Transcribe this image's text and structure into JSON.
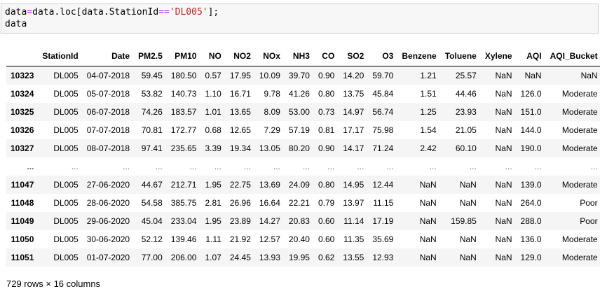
{
  "code": {
    "line1_pre": "data",
    "line1_eq": "=",
    "line1_mid": "data.loc[data.StationId",
    "line1_op": "==",
    "line1_str": "'DL005'",
    "line1_post": "];",
    "line2": "data"
  },
  "table": {
    "columns": [
      "",
      "StationId",
      "Date",
      "PM2.5",
      "PM10",
      "NO",
      "NO2",
      "NOx",
      "NH3",
      "CO",
      "SO2",
      "O3",
      "Benzene",
      "Toluene",
      "Xylene",
      "AQI",
      "AQI_Bucket"
    ],
    "rows": [
      [
        "10323",
        "DL005",
        "04-07-2018",
        "59.45",
        "180.50",
        "0.57",
        "17.95",
        "10.09",
        "39.70",
        "0.90",
        "14.20",
        "59.70",
        "1.21",
        "25.57",
        "NaN",
        "NaN",
        "NaN"
      ],
      [
        "10324",
        "DL005",
        "05-07-2018",
        "53.82",
        "140.73",
        "1.10",
        "16.71",
        "9.78",
        "41.26",
        "0.80",
        "13.75",
        "45.84",
        "1.51",
        "44.46",
        "NaN",
        "126.0",
        "Moderate"
      ],
      [
        "10325",
        "DL005",
        "06-07-2018",
        "74.26",
        "183.57",
        "1.01",
        "13.65",
        "8.09",
        "53.00",
        "0.73",
        "14.97",
        "56.74",
        "1.25",
        "23.93",
        "NaN",
        "151.0",
        "Moderate"
      ],
      [
        "10326",
        "DL005",
        "07-07-2018",
        "70.81",
        "172.77",
        "0.68",
        "12.65",
        "7.29",
        "57.19",
        "0.81",
        "17.17",
        "75.98",
        "1.54",
        "21.05",
        "NaN",
        "144.0",
        "Moderate"
      ],
      [
        "10327",
        "DL005",
        "08-07-2018",
        "97.41",
        "235.65",
        "3.39",
        "19.34",
        "13.05",
        "80.20",
        "0.90",
        "14.17",
        "71.24",
        "2.42",
        "60.10",
        "NaN",
        "190.0",
        "Moderate"
      ],
      [
        "...",
        "...",
        "...",
        "...",
        "...",
        "...",
        "...",
        "...",
        "...",
        "...",
        "...",
        "...",
        "...",
        "...",
        "...",
        "...",
        "..."
      ],
      [
        "11047",
        "DL005",
        "27-06-2020",
        "44.67",
        "212.71",
        "1.95",
        "22.75",
        "13.69",
        "24.09",
        "0.80",
        "14.95",
        "12.44",
        "NaN",
        "NaN",
        "NaN",
        "139.0",
        "Moderate"
      ],
      [
        "11048",
        "DL005",
        "28-06-2020",
        "54.58",
        "385.75",
        "2.81",
        "26.96",
        "16.64",
        "22.21",
        "0.79",
        "13.97",
        "11.15",
        "NaN",
        "NaN",
        "NaN",
        "264.0",
        "Poor"
      ],
      [
        "11049",
        "DL005",
        "29-06-2020",
        "45.04",
        "233.04",
        "1.95",
        "23.89",
        "14.27",
        "20.83",
        "0.60",
        "11.14",
        "17.19",
        "NaN",
        "159.85",
        "NaN",
        "288.0",
        "Poor"
      ],
      [
        "11050",
        "DL005",
        "30-06-2020",
        "52.12",
        "139.46",
        "1.11",
        "21.92",
        "12.57",
        "20.40",
        "0.60",
        "11.35",
        "35.69",
        "NaN",
        "NaN",
        "NaN",
        "136.0",
        "Moderate"
      ],
      [
        "11051",
        "DL005",
        "01-07-2020",
        "77.00",
        "206.00",
        "1.07",
        "24.45",
        "13.93",
        "19.95",
        "0.62",
        "13.55",
        "12.93",
        "NaN",
        "NaN",
        "NaN",
        "129.0",
        "Moderate"
      ]
    ]
  },
  "summary": "729 rows × 16 columns"
}
